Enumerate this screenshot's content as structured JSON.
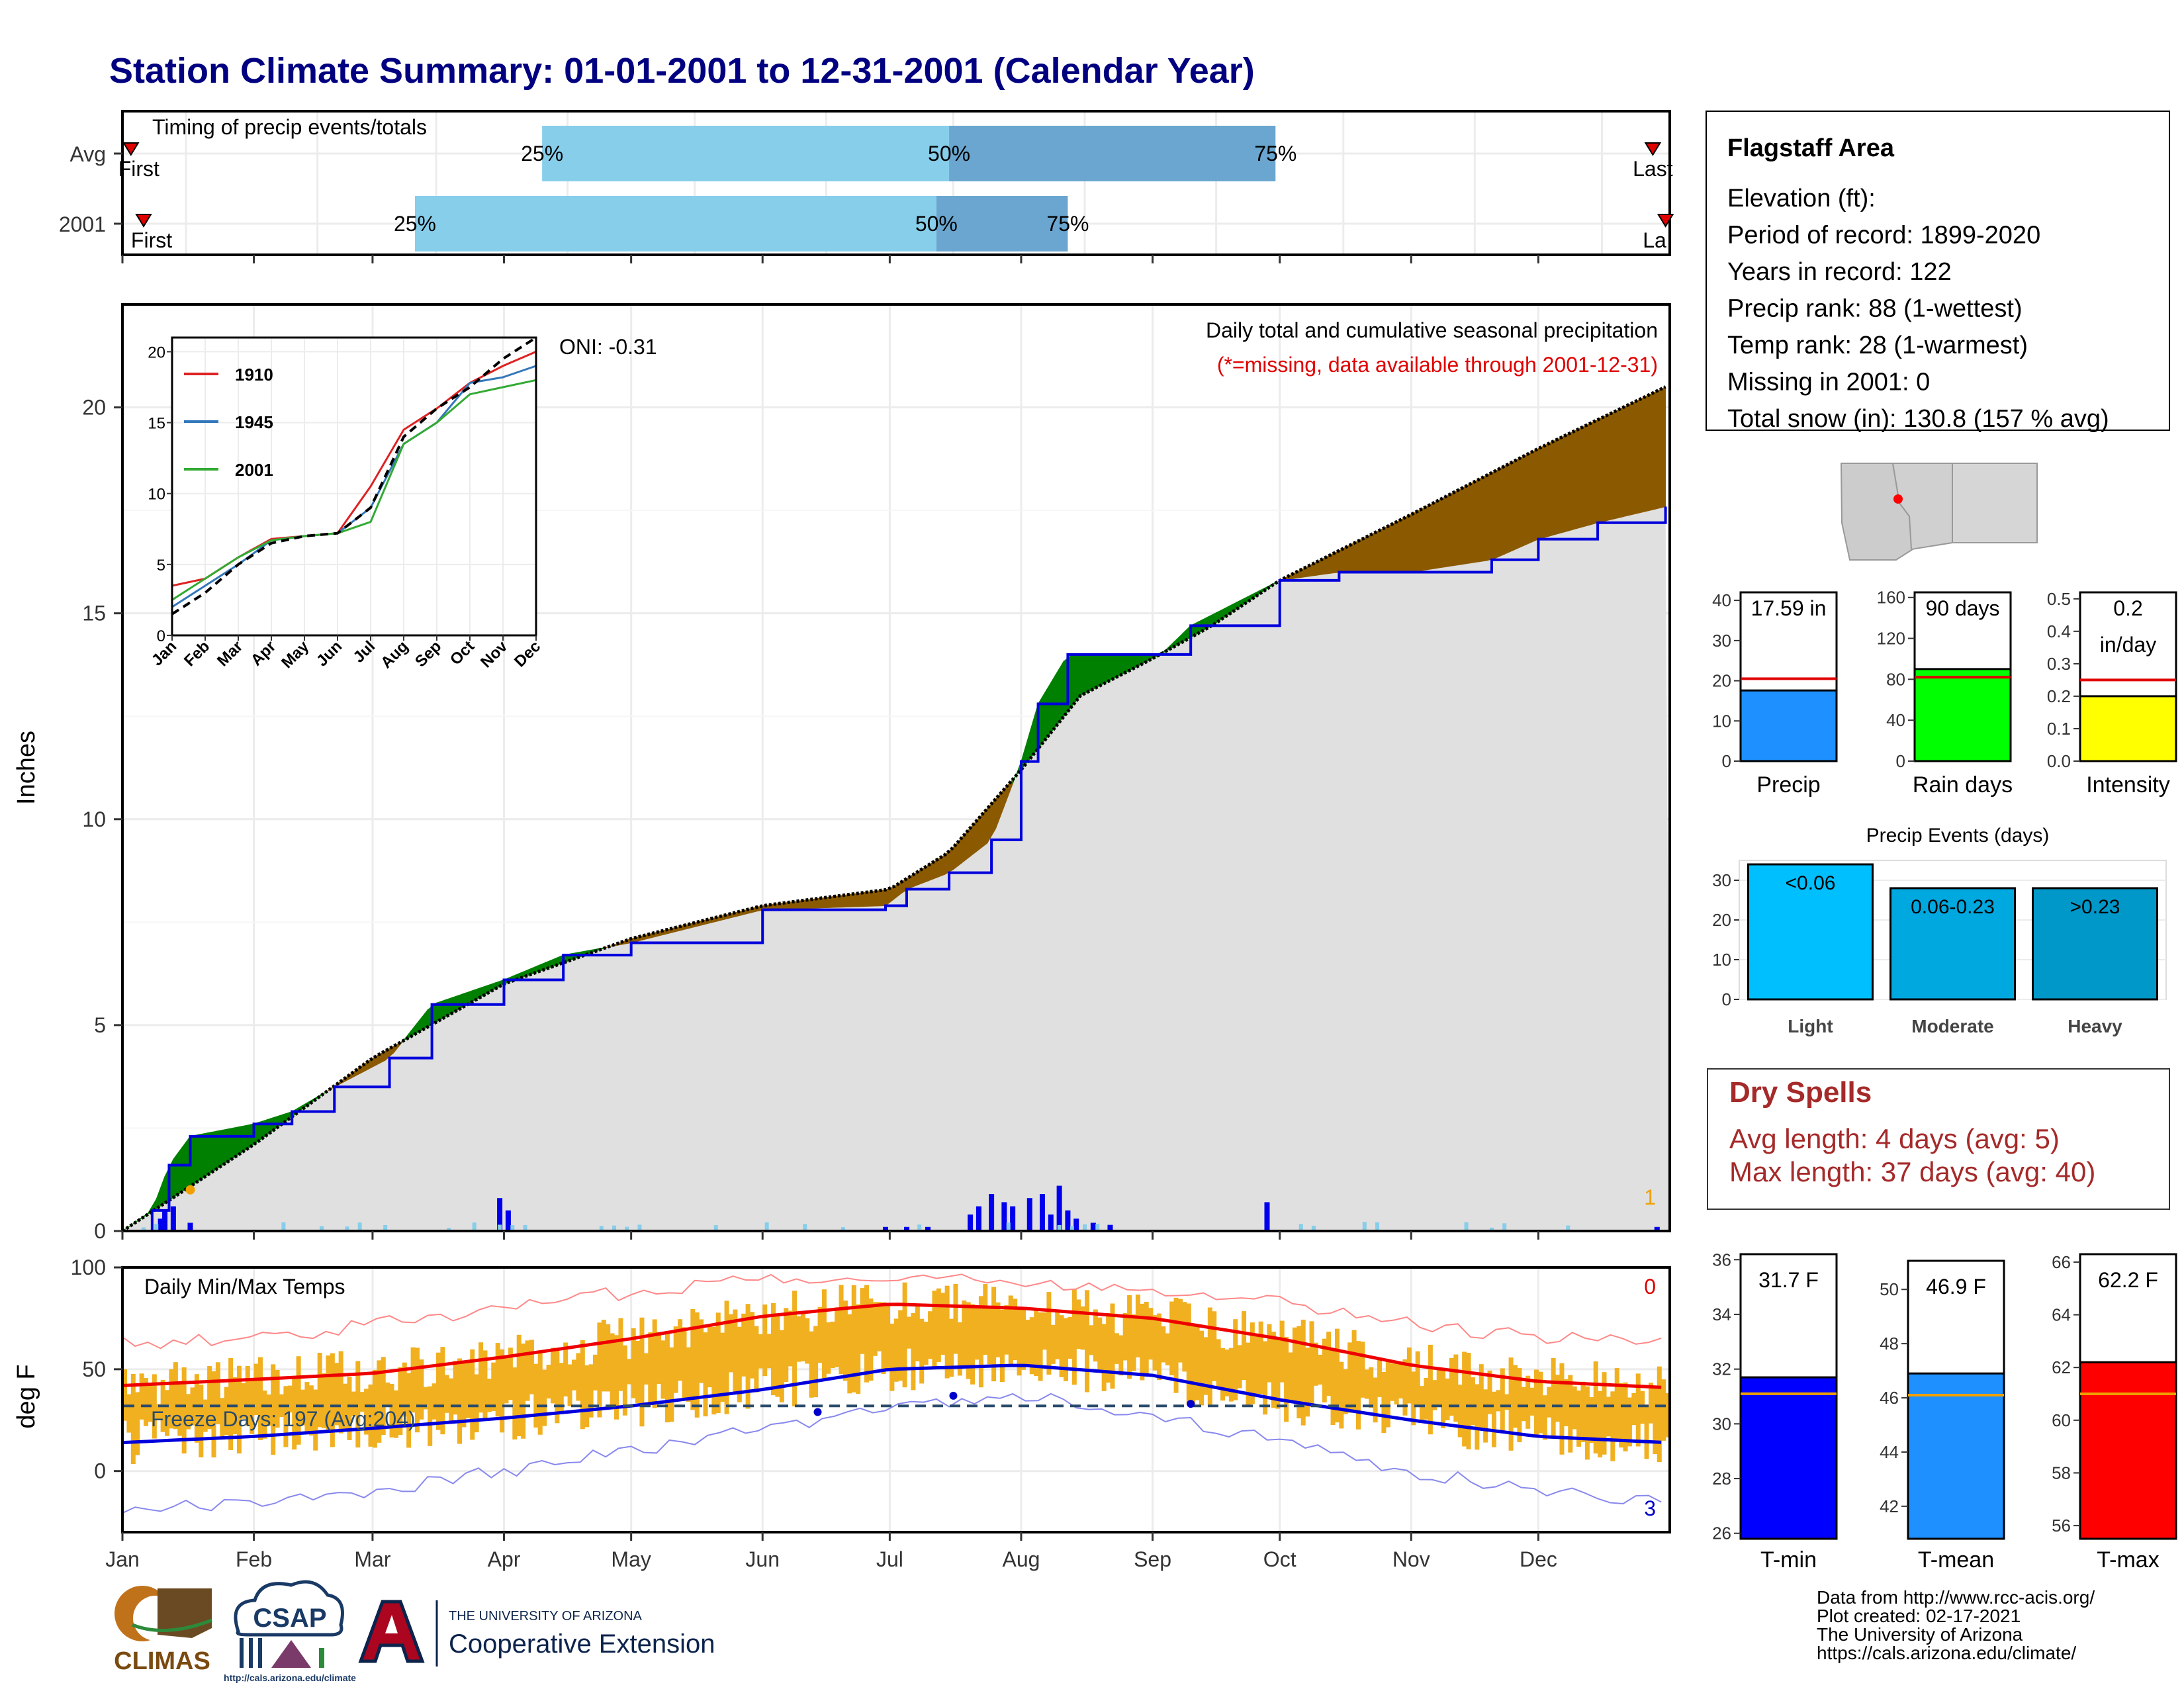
{
  "title": "Station Climate Summary: 01-01-2001 to 12-31-2001 (Calendar Year)",
  "timing_panel": {
    "title": "Timing of precip events/totals",
    "rows": [
      {
        "label": "Avg",
        "first": "First",
        "last": "Last",
        "pct": [
          "25%",
          "50%",
          "75%"
        ],
        "first_date": "2001-01-03",
        "p25": "2001-04-10",
        "p50": "2001-07-15",
        "p75": "2001-09-30",
        "last_date": "2001-12-28"
      },
      {
        "label": "2001",
        "first": "First",
        "last": "La",
        "pct": [
          "25%",
          "50%",
          "75%"
        ],
        "first_date": "2001-01-06",
        "p25": "2001-03-11",
        "p50": "2001-07-12",
        "p75": "2001-08-12",
        "last_date": "2001-12-31"
      }
    ]
  },
  "precip_panel": {
    "ylabel": "Inches",
    "y_ticks": [
      "0",
      "5",
      "10",
      "15",
      "20"
    ],
    "oni": "ONI: -0.31",
    "note1": "Daily total and cumulative seasonal precipitation",
    "note2": "(*=missing, data available through 2001-12-31)",
    "corner_count": "1",
    "colors": {
      "above": "#008000",
      "below": "#8B5A00",
      "fill": "#e0e0e0",
      "obs_line": "#0000dd",
      "daily_bar": "#0000ee",
      "trace_bar": "#87ceeb"
    }
  },
  "chart_data": [
    {
      "type": "area",
      "title": "Daily total and cumulative seasonal precipitation",
      "ylabel": "Inches",
      "ylim": [
        0,
        22.5
      ],
      "series": [
        {
          "name": "2001",
          "x": [
            "2001-01-01",
            "2001-01-08",
            "2001-01-12",
            "2001-01-17",
            "2001-02-01",
            "2001-02-10",
            "2001-02-20",
            "2001-03-05",
            "2001-03-15",
            "2001-04-01",
            "2001-04-15",
            "2001-05-01",
            "2001-06-01",
            "2001-06-30",
            "2001-07-05",
            "2001-07-15",
            "2001-07-25",
            "2001-08-01",
            "2001-08-05",
            "2001-08-12",
            "2001-08-20",
            "2001-09-03",
            "2001-09-10",
            "2001-10-01",
            "2001-10-15",
            "2001-11-01",
            "2001-11-20",
            "2001-12-01",
            "2001-12-15",
            "2001-12-31"
          ],
          "y": [
            0,
            0.5,
            1.6,
            2.3,
            2.6,
            2.9,
            3.5,
            4.2,
            5.5,
            6.1,
            6.7,
            7.0,
            7.8,
            7.9,
            8.3,
            8.7,
            9.5,
            11.4,
            12.8,
            14.0,
            14.0,
            14.0,
            14.7,
            15.8,
            16.0,
            16.0,
            16.3,
            16.8,
            17.2,
            17.59
          ]
        },
        {
          "name": "Avg",
          "x": [
            "2001-01-01",
            "2001-02-01",
            "2001-03-01",
            "2001-04-01",
            "2001-05-01",
            "2001-06-01",
            "2001-07-01",
            "2001-07-15",
            "2001-08-01",
            "2001-08-15",
            "2001-09-01",
            "2001-09-15",
            "2001-10-01",
            "2001-11-01",
            "2001-12-01",
            "2001-12-31"
          ],
          "y": [
            0,
            2.1,
            4.2,
            6.0,
            7.1,
            7.9,
            8.3,
            9.2,
            11.2,
            13.0,
            13.9,
            14.7,
            15.8,
            17.4,
            19.0,
            20.5
          ]
        }
      ],
      "daily_bars": {
        "x": [
          "2001-01-10",
          "2001-01-11",
          "2001-01-13",
          "2001-01-17",
          "2001-03-31",
          "2001-04-02",
          "2001-06-30",
          "2001-07-05",
          "2001-07-10",
          "2001-07-20",
          "2001-07-22",
          "2001-07-25",
          "2001-07-28",
          "2001-07-30",
          "2001-08-03",
          "2001-08-06",
          "2001-08-08",
          "2001-08-10",
          "2001-08-12",
          "2001-08-14",
          "2001-08-18",
          "2001-08-22",
          "2001-09-28",
          "2001-12-29"
        ],
        "y": [
          0.3,
          0.5,
          0.6,
          0.2,
          0.8,
          0.5,
          0.1,
          0.1,
          0.1,
          0.4,
          0.6,
          0.9,
          0.7,
          0.6,
          0.8,
          0.9,
          0.4,
          1.1,
          0.5,
          0.3,
          0.2,
          0.15,
          0.7,
          0.1
        ]
      }
    },
    {
      "type": "line",
      "title": "",
      "xlim": [
        "Jan",
        "Dec"
      ],
      "ylim": [
        0,
        20
      ],
      "series": [
        {
          "name": "1910",
          "y": [
            3.5,
            4.0,
            5.5,
            6.8,
            7.0,
            7.2,
            10.5,
            14.5,
            16.0,
            17.8,
            19.0,
            20.0
          ]
        },
        {
          "name": "1945",
          "y": [
            2.0,
            3.5,
            5.0,
            6.7,
            7.0,
            7.2,
            9.0,
            13.5,
            15.0,
            17.8,
            18.2,
            19.0
          ]
        },
        {
          "name": "2001",
          "y": [
            2.5,
            4.0,
            5.5,
            6.7,
            7.0,
            7.2,
            8.0,
            13.5,
            15.0,
            17.0,
            17.5,
            18.0
          ]
        },
        {
          "name": "",
          "y": [
            1.5,
            3.0,
            5.0,
            6.5,
            7.0,
            7.2,
            9.0,
            14.0,
            16.0,
            17.5,
            19.5,
            21.0
          ]
        }
      ]
    },
    {
      "type": "line",
      "title": "Daily Min/Max Temps",
      "ylabel": "deg F",
      "ylim": [
        -30,
        100
      ],
      "series": [
        {
          "name": "Avg max",
          "x": [
            "2001-01-01",
            "2001-02-01",
            "2001-03-01",
            "2001-04-01",
            "2001-05-01",
            "2001-06-01",
            "2001-07-01",
            "2001-08-01",
            "2001-09-01",
            "2001-10-01",
            "2001-11-01",
            "2001-12-01",
            "2001-12-31"
          ],
          "y": [
            42,
            45,
            48,
            56,
            65,
            76,
            82,
            80,
            75,
            65,
            52,
            44,
            41
          ]
        },
        {
          "name": "Avg min",
          "x": [
            "2001-01-01",
            "2001-02-01",
            "2001-03-01",
            "2001-04-01",
            "2001-05-01",
            "2001-06-01",
            "2001-07-01",
            "2001-08-01",
            "2001-09-01",
            "2001-10-01",
            "2001-11-01",
            "2001-12-01",
            "2001-12-31"
          ],
          "y": [
            14,
            17,
            21,
            26,
            32,
            40,
            50,
            52,
            47,
            35,
            25,
            17,
            14
          ]
        },
        {
          "name": "Record high",
          "x": [
            "2001-01-01",
            "2001-02-01",
            "2001-03-01",
            "2001-04-01",
            "2001-05-01",
            "2001-06-01",
            "2001-07-01",
            "2001-08-01",
            "2001-09-01",
            "2001-10-01",
            "2001-11-01",
            "2001-12-01",
            "2001-12-31"
          ],
          "y": [
            63,
            65,
            72,
            80,
            88,
            95,
            96,
            92,
            90,
            84,
            72,
            66,
            63
          ]
        },
        {
          "name": "Record low",
          "x": [
            "2001-01-01",
            "2001-02-01",
            "2001-03-01",
            "2001-04-01",
            "2001-05-01",
            "2001-06-01",
            "2001-07-01",
            "2001-08-01",
            "2001-09-01",
            "2001-10-01",
            "2001-11-01",
            "2001-12-01",
            "2001-12-31"
          ],
          "y": [
            -20,
            -15,
            -10,
            0,
            10,
            20,
            32,
            38,
            28,
            15,
            0,
            -10,
            -15
          ]
        }
      ],
      "freeze_line": 32
    }
  ],
  "temp_panel": {
    "title": "Daily Min/Max Temps",
    "ylabel": "deg F",
    "y_ticks": [
      "0",
      "50",
      "100"
    ],
    "freeze_label": "Freeze Days: 197 (Avg:204)",
    "count_top": "0",
    "count_bottom": "3",
    "months": [
      "Jan",
      "Feb",
      "Mar",
      "Apr",
      "May",
      "Jun",
      "Jul",
      "Aug",
      "Sep",
      "Oct",
      "Nov",
      "Dec"
    ],
    "colors": {
      "band": "#f0b020",
      "avg_max": "#ee0000",
      "avg_min": "#0000dd",
      "rec_max": "#ff8888",
      "rec_min": "#8888ee",
      "freeze": "#2a4a6a"
    }
  },
  "inset": {
    "legend": [
      "1910",
      "1945",
      "2001"
    ],
    "months": [
      "Jan",
      "Feb",
      "Mar",
      "Apr",
      "May",
      "Jun",
      "Jul",
      "Aug",
      "Sep",
      "Oct",
      "Nov",
      "Dec"
    ],
    "y_ticks": [
      "0",
      "5",
      "10",
      "15",
      "20"
    ],
    "colors": {
      "1910": "#dd2222",
      "1945": "#3377bb",
      "2001": "#33aa33",
      "median": "#000000"
    }
  },
  "info_box": {
    "title": "Flagstaff Area",
    "lines": [
      "Elevation (ft):",
      "Period of record: 1899-2020",
      "Years in record: 122",
      "Precip rank: 88 (1-wettest)",
      "Temp rank: 28 (1-warmest)",
      "Missing in 2001: 0",
      "Total snow (in): 130.8 (157 % avg)"
    ]
  },
  "mini_bars": [
    {
      "name": "Precip",
      "label": "17.59 in",
      "value": 17.59,
      "avg": 20.5,
      "max": 42,
      "ticks": [
        "0",
        "10",
        "20",
        "30",
        "40"
      ],
      "color": "#1e90ff"
    },
    {
      "name": "Rain days",
      "label": "90 days",
      "value": 90,
      "avg": 82,
      "max": 165,
      "ticks": [
        "0",
        "40",
        "80",
        "120",
        "160"
      ],
      "color": "#00ff00"
    },
    {
      "name": "Intensity",
      "label": "0.2",
      "label2": "in/day",
      "value": 0.2,
      "avg": 0.25,
      "max": 0.52,
      "ticks": [
        "0.0",
        "0.1",
        "0.2",
        "0.3",
        "0.4",
        "0.5"
      ],
      "color": "#ffff00"
    }
  ],
  "events": {
    "title": "Precip Events (days)",
    "ticks": [
      "0",
      "10",
      "20",
      "30"
    ],
    "bars": [
      {
        "name": "Light",
        "label": "<0.06",
        "value": 34,
        "color": "#00bfff"
      },
      {
        "name": "Moderate",
        "label": "0.06-0.23",
        "value": 28,
        "color": "#00a8e0"
      },
      {
        "name": "Heavy",
        "label": ">0.23",
        "value": 28,
        "color": "#0098c8"
      }
    ]
  },
  "dry_spells": {
    "title": "Dry Spells",
    "avg": "Avg length: 4 days (avg: 5)",
    "max": "Max length: 37 days (avg: 40)"
  },
  "temp_bars": [
    {
      "name": "T-min",
      "label": "31.7 F",
      "value": 31.7,
      "avg": 31.1,
      "min": 25.8,
      "max": 36.2,
      "ticks": [
        "26",
        "28",
        "30",
        "32",
        "34",
        "36"
      ],
      "color": "#0000ff"
    },
    {
      "name": "T-mean",
      "label": "46.9 F",
      "value": 46.9,
      "avg": 46.1,
      "min": 40.8,
      "max": 51.3,
      "ticks": [
        "42",
        "44",
        "46",
        "48",
        "50"
      ],
      "color": "#1e90ff"
    },
    {
      "name": "T-max",
      "label": "62.2 F",
      "value": 62.2,
      "avg": 61.0,
      "min": 55.5,
      "max": 66.3,
      "ticks": [
        "56",
        "58",
        "60",
        "62",
        "64",
        "66"
      ],
      "color": "#ff0000"
    }
  ],
  "footer": {
    "lines": [
      "Data from http://www.rcc-acis.org/",
      "Plot created: 02-17-2021",
      "The University of Arizona",
      "https://cals.arizona.edu/climate/"
    ]
  },
  "logos": {
    "climas": "CLIMAS",
    "csap": "CSAP",
    "csap_url": "http://cals.arizona.edu/climate",
    "ua_small": "THE UNIVERSITY OF ARIZONA",
    "ua_big": "Cooperative Extension"
  }
}
